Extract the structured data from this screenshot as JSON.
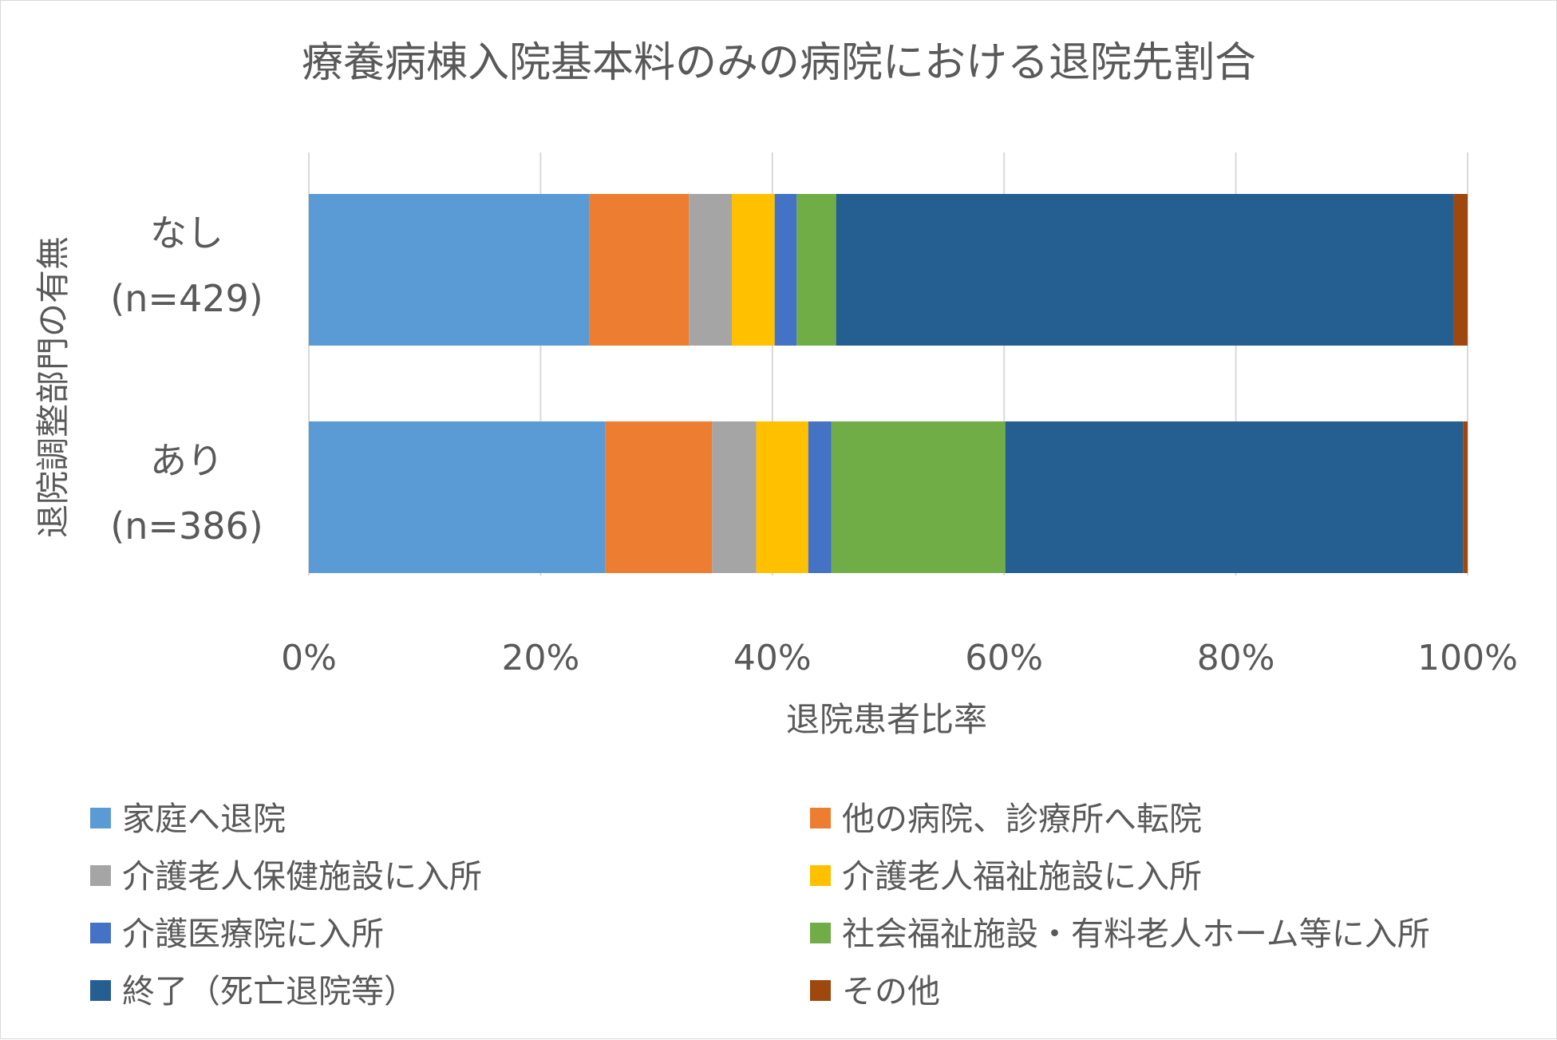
{
  "chart_data": {
    "type": "bar",
    "orientation": "horizontal",
    "stacked": "percent",
    "title": "療養病棟入院基本料のみの病院における退院先割合",
    "xlabel": "退院患者比率",
    "ylabel": "退院調整部門の有無",
    "xlim": [
      0,
      100
    ],
    "xticks": [
      "0%",
      "20%",
      "40%",
      "60%",
      "80%",
      "100%"
    ],
    "grid": "vertical",
    "legend_position": "bottom",
    "categories": [
      {
        "line1": "なし",
        "line2": "(n=429)"
      },
      {
        "line1": "あり",
        "line2": "(n=386)"
      }
    ],
    "series": [
      {
        "name": "家庭へ退院",
        "color": "#5b9bd5",
        "values": [
          24.2,
          25.6
        ]
      },
      {
        "name": "他の病院、診療所へ転院",
        "color": "#ed7d31",
        "values": [
          8.6,
          9.2
        ]
      },
      {
        "name": "介護老人保健施設に入所",
        "color": "#a5a5a5",
        "values": [
          3.7,
          3.8
        ]
      },
      {
        "name": "介護老人福祉施設に入所",
        "color": "#ffc000",
        "values": [
          3.7,
          4.5
        ]
      },
      {
        "name": "介護医療院に入所",
        "color": "#4472c4",
        "values": [
          1.9,
          2.0
        ]
      },
      {
        "name": "社会福祉施設・有料老人ホーム等に入所",
        "color": "#70ad47",
        "values": [
          3.4,
          15.0
        ]
      },
      {
        "name": "終了（死亡退院等）",
        "color": "#255e91",
        "values": [
          53.3,
          39.5
        ]
      },
      {
        "name": "その他",
        "color": "#9e480e",
        "values": [
          1.2,
          0.4
        ]
      }
    ]
  }
}
